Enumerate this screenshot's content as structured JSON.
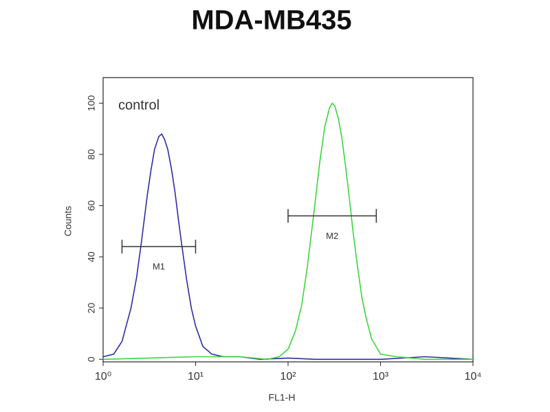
{
  "chart_data": {
    "type": "line",
    "title": "MDA-MB435",
    "xlabel": "FL1-H",
    "ylabel": "Counts",
    "annotation": "control",
    "xscale": "log",
    "xlim": [
      1,
      10000
    ],
    "ylim": [
      -1,
      110
    ],
    "xticks": [
      {
        "value": 1,
        "label": "10⁰"
      },
      {
        "value": 10,
        "label": "10¹"
      },
      {
        "value": 100,
        "label": "10²"
      },
      {
        "value": 1000,
        "label": "10³"
      },
      {
        "value": 10000,
        "label": "10⁴"
      }
    ],
    "yticks": [
      0,
      20,
      40,
      60,
      80,
      100
    ],
    "series": [
      {
        "color": "#2b2ba6",
        "x": [
          1,
          1.3,
          1.6,
          2,
          2.3,
          2.6,
          3,
          3.3,
          3.6,
          4,
          4.3,
          4.6,
          5,
          5.5,
          6,
          6.5,
          7,
          8,
          9,
          10,
          12,
          15,
          20,
          30,
          50,
          100,
          200,
          500,
          1000,
          3000,
          10000
        ],
        "values": [
          1,
          2,
          7,
          20,
          32,
          46,
          64,
          74,
          82,
          87,
          88,
          86,
          82,
          74,
          65,
          55,
          46,
          31,
          20,
          13,
          5,
          2,
          1,
          1,
          0,
          0.5,
          0,
          0,
          0,
          1,
          0
        ]
      },
      {
        "color": "#3ad63a",
        "x": [
          1,
          10,
          30,
          60,
          80,
          100,
          120,
          140,
          160,
          180,
          200,
          220,
          250,
          280,
          300,
          320,
          350,
          380,
          420,
          460,
          500,
          560,
          630,
          700,
          800,
          1000,
          1500,
          3000,
          10000
        ],
        "values": [
          0,
          1,
          1,
          0,
          1,
          4,
          11,
          21,
          35,
          50,
          64,
          77,
          91,
          98,
          100,
          99,
          94,
          87,
          75,
          63,
          51,
          37,
          24,
          16,
          8,
          2,
          1,
          0,
          0
        ]
      }
    ],
    "markers": [
      {
        "label": "M1",
        "x0": 1.6,
        "x1": 10,
        "y": 44
      },
      {
        "label": "M2",
        "x0": 100,
        "x1": 900,
        "y": 56
      }
    ]
  }
}
